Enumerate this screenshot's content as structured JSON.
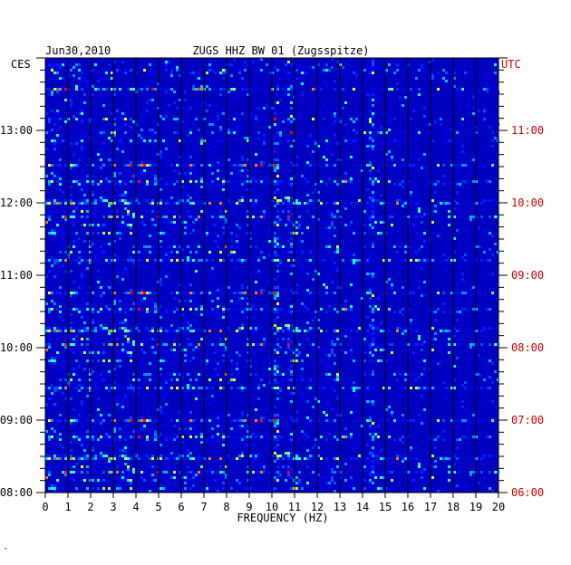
{
  "chart_data": {
    "type": "heatmap",
    "date": "Jun30,2010",
    "title": "ZUGS HHZ BW 01 (Zugsspitze)",
    "left_zone_label": "CES",
    "right_zone_label": "UTC",
    "xlabel": "FREQUENCY (HZ)",
    "xlim": [
      0,
      20
    ],
    "x_ticks": [
      "0",
      "1",
      "2",
      "3",
      "4",
      "5",
      "6",
      "7",
      "8",
      "9",
      "10",
      "11",
      "12",
      "13",
      "14",
      "15",
      "16",
      "17",
      "18",
      "19",
      "20"
    ],
    "left_time_ticks": [
      "13:00",
      "12:00",
      "11:00",
      "10:00",
      "09:00",
      "08:00"
    ],
    "right_time_ticks": [
      "11:00",
      "10:00",
      "09:00",
      "08:00",
      "07:00",
      "06:00"
    ],
    "time_range_local": [
      "08:00",
      "13:50"
    ],
    "colors": {
      "background": "#0000c0",
      "grid": "#000000",
      "utc_text": "#cc0000",
      "label_text": "#000000"
    },
    "persistent_peaks_hz": [
      10.1,
      10.7,
      14.3
    ]
  },
  "footer_mark": "″"
}
